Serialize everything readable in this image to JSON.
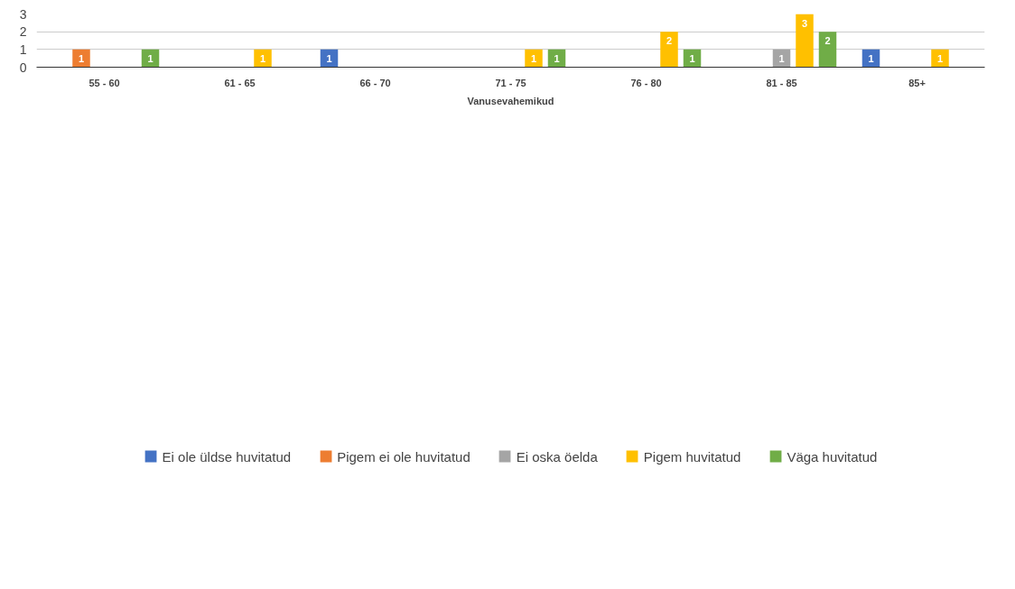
{
  "chart_data": {
    "type": "bar",
    "xlabel": "Vanusevahemikud",
    "categories": [
      "55 - 60",
      "61 - 65",
      "66 - 70",
      "71 - 75",
      "76 - 80",
      "81 - 85",
      "85+"
    ],
    "series": [
      {
        "name": "Ei ole üldse huvitatud",
        "color": "#4472c4",
        "values": [
          null,
          null,
          1,
          null,
          null,
          null,
          1
        ]
      },
      {
        "name": "Pigem ei ole huvitatud",
        "color": "#ed7d31",
        "values": [
          1,
          null,
          null,
          null,
          null,
          null,
          null
        ]
      },
      {
        "name": "Ei oska öelda",
        "color": "#a5a5a5",
        "values": [
          null,
          null,
          null,
          null,
          null,
          1,
          null
        ]
      },
      {
        "name": "Pigem huvitatud",
        "color": "#ffc000",
        "values": [
          null,
          1,
          null,
          1,
          2,
          3,
          1
        ]
      },
      {
        "name": "Väga huvitatud",
        "color": "#70ad47",
        "values": [
          1,
          null,
          null,
          1,
          1,
          2,
          null
        ]
      }
    ],
    "ylim": [
      0,
      3
    ],
    "yticks": [
      0,
      1,
      2,
      3
    ],
    "grid": "y",
    "legend": "bottom",
    "data_labels": true
  }
}
